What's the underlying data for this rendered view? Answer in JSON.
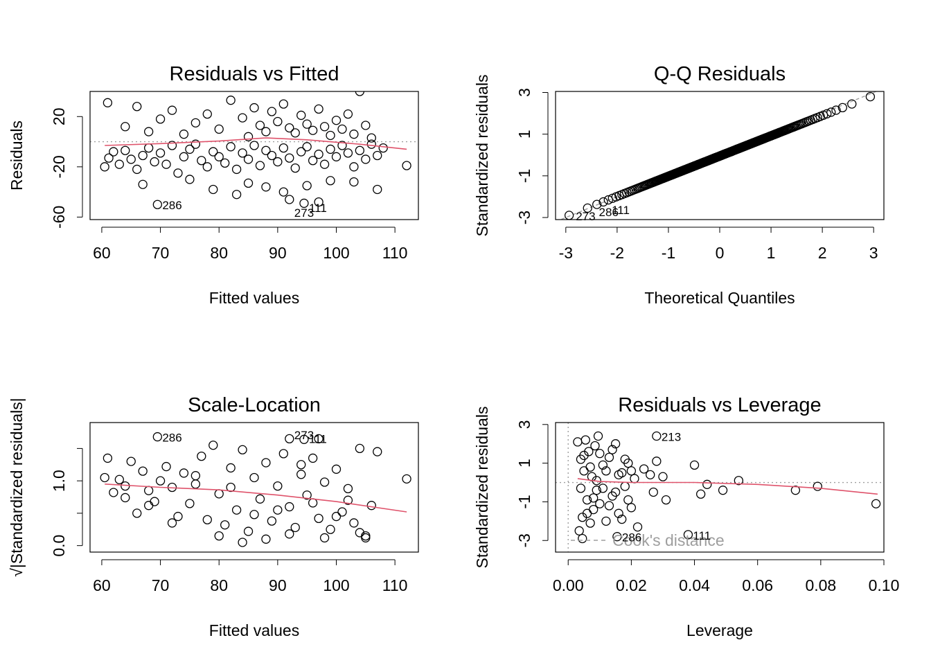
{
  "figure": {
    "point_color": "#000000",
    "smooth_color": "#DF536B",
    "reference_color": "#9E9E9E"
  },
  "chart_data": [
    {
      "type": "scatter",
      "title": "Residuals vs Fitted",
      "xlabel": "Fitted values",
      "ylabel": "Residuals",
      "xlim": [
        58,
        114
      ],
      "ylim": [
        -62,
        40
      ],
      "xticks": [
        60,
        70,
        80,
        90,
        100,
        110
      ],
      "yticks": [
        -60,
        -20,
        20
      ],
      "xtick_labels": [
        "60",
        "70",
        "80",
        "90",
        "100",
        "110"
      ],
      "ytick_labels": [
        "-60",
        "-20",
        "20"
      ],
      "reference_line": {
        "y": 0,
        "style": "dotted"
      },
      "smooth_line": [
        [
          60.5,
          -3
        ],
        [
          70,
          -1.5
        ],
        [
          80,
          0.5
        ],
        [
          88,
          3
        ],
        [
          95,
          1.5
        ],
        [
          104,
          -2
        ],
        [
          112,
          -6
        ]
      ],
      "points": [
        [
          60.5,
          -20
        ],
        [
          61.2,
          -13
        ],
        [
          62,
          -8
        ],
        [
          63,
          -18
        ],
        [
          64,
          -7
        ],
        [
          65,
          -14
        ],
        [
          66,
          -22
        ],
        [
          67,
          -11
        ],
        [
          68,
          -5
        ],
        [
          69,
          -16
        ],
        [
          70,
          -9
        ],
        [
          71,
          -18
        ],
        [
          72,
          -3
        ],
        [
          73,
          -25
        ],
        [
          74,
          -12
        ],
        [
          75,
          -6
        ],
        [
          76,
          -2
        ],
        [
          77,
          -15
        ],
        [
          78,
          -20
        ],
        [
          79,
          -8
        ],
        [
          80,
          -12
        ],
        [
          81,
          -17
        ],
        [
          82,
          -4
        ],
        [
          83,
          -22
        ],
        [
          84,
          -9
        ],
        [
          85,
          -14
        ],
        [
          86,
          -3
        ],
        [
          87,
          -19
        ],
        [
          88,
          -7
        ],
        [
          89,
          -11
        ],
        [
          90,
          -16
        ],
        [
          91,
          -5
        ],
        [
          92,
          -13
        ],
        [
          93,
          -21
        ],
        [
          94,
          -8
        ],
        [
          95,
          -4
        ],
        [
          96,
          -15
        ],
        [
          97,
          -10
        ],
        [
          98,
          -18
        ],
        [
          99,
          -6
        ],
        [
          100,
          -12
        ],
        [
          101,
          -3
        ],
        [
          102,
          -9
        ],
        [
          103,
          -20
        ],
        [
          104,
          -7
        ],
        [
          105,
          -14
        ],
        [
          106,
          -2
        ],
        [
          107,
          -11
        ],
        [
          108,
          -5
        ],
        [
          112,
          -19
        ],
        [
          61,
          31
        ],
        [
          64,
          12
        ],
        [
          66,
          28
        ],
        [
          68,
          8
        ],
        [
          70,
          18
        ],
        [
          72,
          25
        ],
        [
          74,
          6
        ],
        [
          76,
          15
        ],
        [
          78,
          22
        ],
        [
          80,
          10
        ],
        [
          82,
          33
        ],
        [
          84,
          19
        ],
        [
          85,
          4
        ],
        [
          86,
          27
        ],
        [
          87,
          13
        ],
        [
          88,
          8
        ],
        [
          89,
          24
        ],
        [
          90,
          16
        ],
        [
          91,
          30
        ],
        [
          92,
          11
        ],
        [
          93,
          7
        ],
        [
          94,
          21
        ],
        [
          95,
          14
        ],
        [
          96,
          9
        ],
        [
          97,
          26
        ],
        [
          98,
          12
        ],
        [
          99,
          5
        ],
        [
          100,
          17
        ],
        [
          101,
          10
        ],
        [
          102,
          22
        ],
        [
          103,
          6
        ],
        [
          104,
          40
        ],
        [
          105,
          13
        ],
        [
          106,
          3
        ],
        [
          67,
          -34
        ],
        [
          75,
          -30
        ],
        [
          79,
          -38
        ],
        [
          83,
          -42
        ],
        [
          85,
          -33
        ],
        [
          88,
          -36
        ],
        [
          91,
          -40
        ],
        [
          95,
          -35
        ],
        [
          99,
          -31
        ],
        [
          103,
          -32
        ],
        [
          107,
          -38
        ],
        [
          69.5,
          -50
        ],
        [
          92,
          -46
        ],
        [
          94.5,
          -49
        ],
        [
          97,
          -48
        ]
      ],
      "point_labels": [
        {
          "text": "286",
          "x": 69.5,
          "y": -50
        },
        {
          "text": "273",
          "x": 92,
          "y": -56
        },
        {
          "text": "111",
          "x": 94.5,
          "y": -52
        }
      ]
    },
    {
      "type": "scatter",
      "title": "Q-Q Residuals",
      "xlabel": "Theoretical Quantiles",
      "ylabel": "Standardized residuals",
      "xlim": [
        -3.2,
        3.2
      ],
      "ylim": [
        -3.1,
        3.05
      ],
      "xticks": [
        -3,
        -2,
        -1,
        0,
        1,
        2,
        3
      ],
      "yticks": [
        -3,
        -1,
        1,
        3
      ],
      "xtick_labels": [
        "-3",
        "-2",
        "-1",
        "0",
        "1",
        "2",
        "3"
      ],
      "ytick_labels": [
        "-3",
        "-1",
        "1",
        "3"
      ],
      "reference_line": {
        "slope": 1,
        "intercept": 0,
        "style": "dashed"
      },
      "qq_points": {
        "n": 300,
        "scale": 0.97,
        "shift": -0.05
      },
      "point_labels": [
        {
          "text": "273",
          "x": -2.9,
          "y": -2.9
        },
        {
          "text": "286",
          "x": -2.45,
          "y": -2.7
        },
        {
          "text": "111",
          "x": -2.2,
          "y": -2.6
        }
      ]
    },
    {
      "type": "scatter",
      "title": "Scale-Location",
      "xlabel": "Fitted values",
      "ylabel": "√|Standardized residuals|",
      "xlim": [
        58,
        114
      ],
      "ylim": [
        -0.1,
        1.9
      ],
      "xticks": [
        60,
        70,
        80,
        90,
        100,
        110
      ],
      "yticks": [
        0.0,
        0.5,
        1.0,
        1.5
      ],
      "xtick_labels": [
        "60",
        "70",
        "80",
        "90",
        "100",
        "110"
      ],
      "ytick_labels": [
        "0.0",
        "",
        "1.0",
        ""
      ],
      "smooth_line": [
        [
          60.5,
          0.95
        ],
        [
          70,
          0.9
        ],
        [
          80,
          0.86
        ],
        [
          90,
          0.78
        ],
        [
          100,
          0.68
        ],
        [
          112,
          0.52
        ]
      ],
      "points": [
        [
          60.5,
          1.05
        ],
        [
          61,
          1.35
        ],
        [
          62,
          0.82
        ],
        [
          63,
          1.02
        ],
        [
          64,
          0.74
        ],
        [
          65,
          1.3
        ],
        [
          66,
          0.5
        ],
        [
          67,
          1.15
        ],
        [
          68,
          0.85
        ],
        [
          69,
          0.68
        ],
        [
          70,
          1.0
        ],
        [
          71,
          1.22
        ],
        [
          72,
          0.9
        ],
        [
          73,
          0.45
        ],
        [
          74,
          1.12
        ],
        [
          75,
          0.65
        ],
        [
          76,
          0.95
        ],
        [
          77,
          1.38
        ],
        [
          78,
          0.4
        ],
        [
          79,
          1.55
        ],
        [
          80,
          0.8
        ],
        [
          81,
          0.32
        ],
        [
          82,
          1.2
        ],
        [
          83,
          0.55
        ],
        [
          84,
          1.48
        ],
        [
          85,
          0.22
        ],
        [
          86,
          1.05
        ],
        [
          87,
          0.72
        ],
        [
          88,
          1.28
        ],
        [
          89,
          0.38
        ],
        [
          90,
          0.92
        ],
        [
          91,
          1.42
        ],
        [
          92,
          0.6
        ],
        [
          93,
          0.28
        ],
        [
          94,
          1.1
        ],
        [
          95,
          0.78
        ],
        [
          96,
          1.35
        ],
        [
          97,
          0.42
        ],
        [
          98,
          0.98
        ],
        [
          99,
          0.25
        ],
        [
          100,
          1.18
        ],
        [
          101,
          0.52
        ],
        [
          102,
          0.88
        ],
        [
          103,
          0.35
        ],
        [
          104,
          1.5
        ],
        [
          105,
          0.15
        ],
        [
          106,
          0.62
        ],
        [
          107,
          1.45
        ],
        [
          112,
          1.03
        ],
        [
          64,
          0.92
        ],
        [
          68,
          0.62
        ],
        [
          72,
          0.35
        ],
        [
          76,
          1.08
        ],
        [
          80,
          0.15
        ],
        [
          82,
          0.9
        ],
        [
          84,
          0.05
        ],
        [
          86,
          0.48
        ],
        [
          88,
          0.1
        ],
        [
          90,
          0.55
        ],
        [
          92,
          0.18
        ],
        [
          94,
          1.25
        ],
        [
          96,
          0.66
        ],
        [
          98,
          0.12
        ],
        [
          100,
          0.45
        ],
        [
          102,
          0.7
        ],
        [
          104,
          0.2
        ],
        [
          105,
          0.12
        ],
        [
          69.5,
          1.68
        ],
        [
          92,
          1.65
        ],
        [
          94.5,
          1.64
        ],
        [
          97,
          1.65
        ]
      ],
      "point_labels": [
        {
          "text": "286",
          "x": 69.5,
          "y": 1.68
        },
        {
          "text": "273",
          "x": 92,
          "y": 1.72
        },
        {
          "text": "111",
          "x": 94.5,
          "y": 1.66
        }
      ]
    },
    {
      "type": "scatter",
      "title": "Residuals vs Leverage",
      "xlabel": "Leverage",
      "ylabel": "Standardized residuals",
      "xlim": [
        -0.004,
        0.1
      ],
      "ylim": [
        -3.6,
        3.1
      ],
      "xticks": [
        0.0,
        0.02,
        0.04,
        0.06,
        0.08,
        0.1
      ],
      "yticks": [
        -3,
        -1,
        1,
        3
      ],
      "xtick_labels": [
        "0.00",
        "0.02",
        "0.04",
        "0.06",
        "0.08",
        "0.10"
      ],
      "ytick_labels": [
        "-3",
        "-1",
        "1",
        "3"
      ],
      "reference_line": {
        "y": 0,
        "x": 0,
        "style": "dotted"
      },
      "smooth_line": [
        [
          0.003,
          0.2
        ],
        [
          0.01,
          0.05
        ],
        [
          0.02,
          0.0
        ],
        [
          0.04,
          0.0
        ],
        [
          0.06,
          -0.1
        ],
        [
          0.08,
          -0.3
        ],
        [
          0.098,
          -0.6
        ]
      ],
      "points": [
        [
          0.003,
          2.1
        ],
        [
          0.0035,
          -2.5
        ],
        [
          0.004,
          1.2
        ],
        [
          0.0045,
          -1.8
        ],
        [
          0.005,
          0.6
        ],
        [
          0.0055,
          2.2
        ],
        [
          0.006,
          -0.9
        ],
        [
          0.0065,
          1.6
        ],
        [
          0.007,
          -2.1
        ],
        [
          0.0075,
          0.3
        ],
        [
          0.008,
          -1.4
        ],
        [
          0.0085,
          1.9
        ],
        [
          0.009,
          -0.4
        ],
        [
          0.0095,
          2.4
        ],
        [
          0.01,
          -1.1
        ],
        [
          0.011,
          0.9
        ],
        [
          0.012,
          -2.0
        ],
        [
          0.013,
          1.3
        ],
        [
          0.014,
          -0.7
        ],
        [
          0.015,
          2.0
        ],
        [
          0.016,
          -1.6
        ],
        [
          0.017,
          0.5
        ],
        [
          0.018,
          -0.2
        ],
        [
          0.019,
          1.0
        ],
        [
          0.02,
          -1.3
        ],
        [
          0.021,
          0.2
        ],
        [
          0.022,
          -2.3
        ],
        [
          0.024,
          0.7
        ],
        [
          0.026,
          0.4
        ],
        [
          0.027,
          -0.5
        ],
        [
          0.028,
          1.1
        ],
        [
          0.03,
          0.3
        ],
        [
          0.031,
          -0.9
        ],
        [
          0.04,
          0.9
        ],
        [
          0.042,
          -0.6
        ],
        [
          0.044,
          -0.1
        ],
        [
          0.049,
          -0.4
        ],
        [
          0.054,
          0.1
        ],
        [
          0.072,
          -0.4
        ],
        [
          0.079,
          -0.2
        ],
        [
          0.0975,
          -1.1
        ],
        [
          0.004,
          -0.3
        ],
        [
          0.005,
          1.4
        ],
        [
          0.006,
          -1.6
        ],
        [
          0.007,
          0.8
        ],
        [
          0.008,
          -0.8
        ],
        [
          0.009,
          0.1
        ],
        [
          0.01,
          1.5
        ],
        [
          0.011,
          -0.3
        ],
        [
          0.012,
          0.6
        ],
        [
          0.013,
          -1.2
        ],
        [
          0.014,
          1.7
        ],
        [
          0.015,
          -0.5
        ],
        [
          0.016,
          0.4
        ],
        [
          0.017,
          -1.9
        ],
        [
          0.018,
          1.2
        ],
        [
          0.019,
          -0.9
        ],
        [
          0.02,
          0.6
        ],
        [
          0.0045,
          -2.9
        ],
        [
          0.0155,
          -2.8
        ],
        [
          0.028,
          2.4
        ],
        [
          0.038,
          -2.7
        ]
      ],
      "point_labels": [
        {
          "text": "213",
          "x": 0.028,
          "y": 2.4
        },
        {
          "text": "286",
          "x": 0.0155,
          "y": -2.8
        },
        {
          "text": "111",
          "x": 0.038,
          "y": -2.7
        }
      ],
      "legend": {
        "text": "Cook's distance",
        "style": "dashed"
      }
    }
  ]
}
